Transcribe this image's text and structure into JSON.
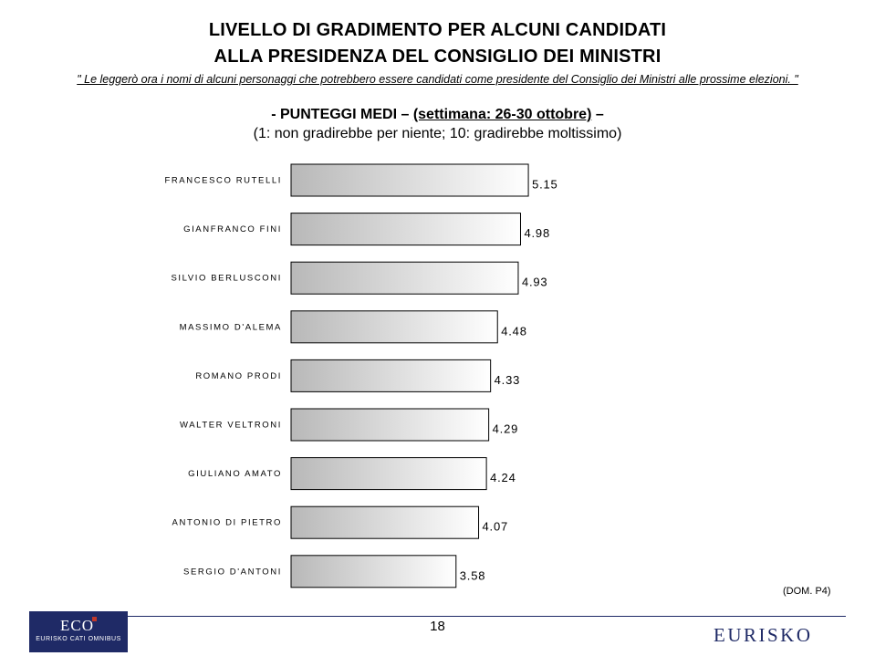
{
  "header": {
    "title_line1": "LIVELLO DI GRADIMENTO PER ALCUNI CANDIDATI",
    "title_line2": "ALLA PRESIDENZA DEL CONSIGLIO DEI MINISTRI",
    "quote": "\" Le leggerò ora i nomi di alcuni personaggi che potrebbero essere candidati come presidente del Consiglio dei Ministri alle prossime elezioni. \"",
    "subtitle_prefix": "- PUNTEGGI MEDI – ",
    "subtitle_week": "(settimana: 26-30 ottobre)",
    "subtitle_suffix": " –",
    "scale_note": "(1: non gradirebbe per niente; 10: gradirebbe moltissimo)"
  },
  "chart_data": {
    "type": "bar",
    "orientation": "horizontal",
    "categories": [
      "FRANCESCO RUTELLI",
      "GIANFRANCO FINI",
      "SILVIO BERLUSCONI",
      "MASSIMO D'ALEMA",
      "ROMANO PRODI",
      "WALTER VELTRONI",
      "GIULIANO AMATO",
      "ANTONIO DI PIETRO",
      "SERGIO D'ANTONI"
    ],
    "values": [
      5.15,
      4.98,
      4.93,
      4.48,
      4.33,
      4.29,
      4.24,
      4.07,
      3.58
    ],
    "value_labels": [
      "5.15",
      "4.98",
      "4.93",
      "4.48",
      "4.33",
      "4.29",
      "4.24",
      "4.07",
      "3.58"
    ],
    "xlim": [
      0,
      5.5
    ],
    "grid": false,
    "legend": "none"
  },
  "footer": {
    "source_note": "(DOM. P4)",
    "page_number": "18",
    "eco_logo_text": "ECO",
    "eco_logo_subtext": "EURISKO CATI OMNIBUS",
    "brand_logo_text": "EURISKO"
  },
  "colors": {
    "bar_dark": "#b8b8b8",
    "bar_light": "#ffffff",
    "brand_navy": "#1f2a66"
  }
}
